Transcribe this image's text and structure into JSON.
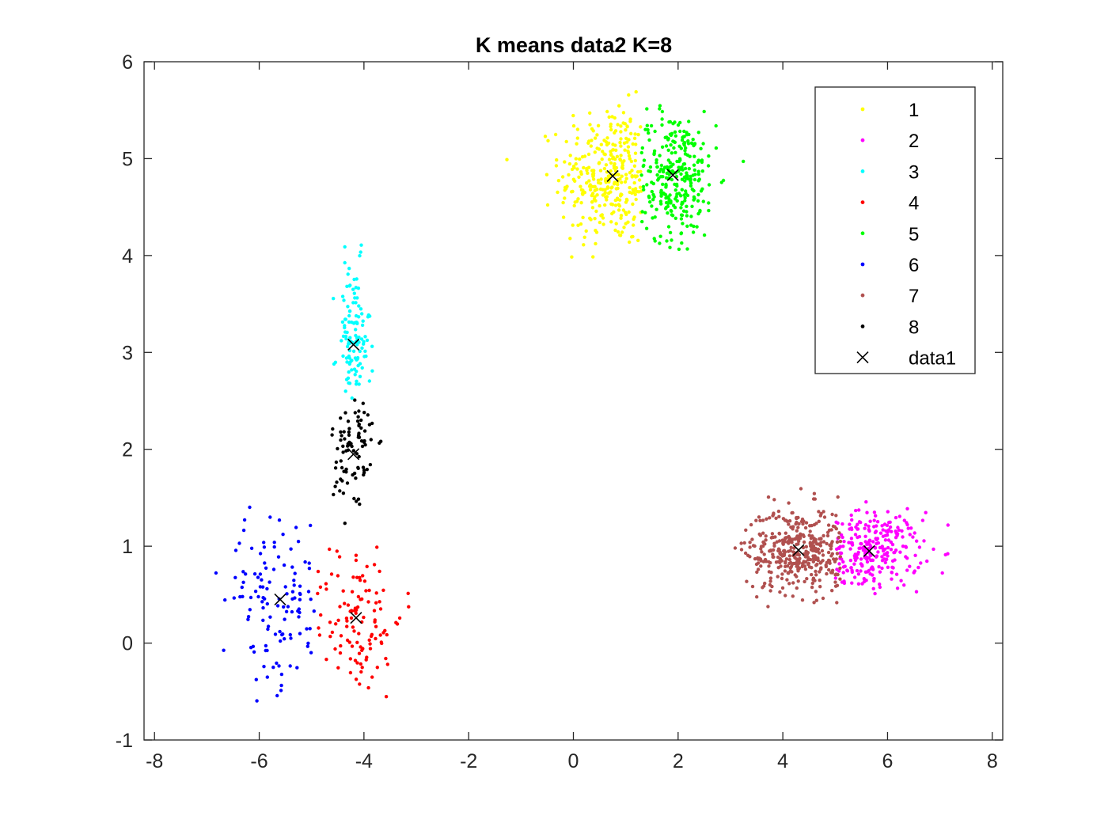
{
  "chart_data": {
    "type": "scatter",
    "title": "K means data2 K=8",
    "xlabel": "",
    "ylabel": "",
    "xlim": [
      -8.2,
      8.2
    ],
    "ylim": [
      -1,
      6
    ],
    "xticks": [
      -8,
      -6,
      -4,
      -2,
      0,
      2,
      4,
      6,
      8
    ],
    "xtick_labels": [
      "-8",
      "-6",
      "-4",
      "-2",
      "0",
      "2",
      "4",
      "6",
      "8"
    ],
    "yticks": [
      -1,
      0,
      1,
      2,
      3,
      4,
      5,
      6
    ],
    "ytick_labels": [
      "-1",
      "0",
      "1",
      "2",
      "3",
      "4",
      "5",
      "6"
    ],
    "grid": false,
    "box": true,
    "legend": {
      "position": "top-right",
      "entries": [
        "1",
        "2",
        "3",
        "4",
        "5",
        "6",
        "7",
        "8",
        "data1"
      ]
    },
    "series": [
      {
        "name": "1",
        "color": "#ffff00",
        "marker": "dot",
        "cluster": {
          "center": [
            0.75,
            4.82
          ],
          "spread": [
            0.5,
            0.36
          ],
          "count": 330,
          "range_x": [
            -1.3,
            1.3
          ],
          "range_y": [
            3.85,
            5.82
          ]
        }
      },
      {
        "name": "2",
        "color": "#ff00ff",
        "marker": "dot",
        "cluster": {
          "center": [
            5.65,
            0.95
          ],
          "spread": [
            0.5,
            0.2
          ],
          "count": 260,
          "range_x": [
            5.0,
            7.5
          ],
          "range_y": [
            0.5,
            1.55
          ]
        }
      },
      {
        "name": "3",
        "color": "#00ffff",
        "marker": "dot",
        "cluster": {
          "center": [
            -4.2,
            3.08
          ],
          "spread": [
            0.16,
            0.42
          ],
          "count": 120,
          "range_x": [
            -4.6,
            -3.8
          ],
          "range_y": [
            2.5,
            4.65
          ]
        }
      },
      {
        "name": "4",
        "color": "#ff0000",
        "marker": "dot",
        "cluster": {
          "center": [
            -4.15,
            0.26
          ],
          "spread": [
            0.45,
            0.4
          ],
          "count": 115,
          "range_x": [
            -4.9,
            -2.8
          ],
          "range_y": [
            -0.62,
            1.08
          ]
        }
      },
      {
        "name": "5",
        "color": "#00ff00",
        "marker": "dot",
        "cluster": {
          "center": [
            1.9,
            4.83
          ],
          "spread": [
            0.42,
            0.33
          ],
          "count": 290,
          "range_x": [
            1.3,
            3.3
          ],
          "range_y": [
            3.9,
            5.75
          ]
        }
      },
      {
        "name": "6",
        "color": "#0000ff",
        "marker": "dot",
        "cluster": {
          "center": [
            -5.6,
            0.45
          ],
          "spread": [
            0.55,
            0.45
          ],
          "count": 120,
          "range_x": [
            -7.4,
            -4.85
          ],
          "range_y": [
            -0.6,
            1.42
          ]
        }
      },
      {
        "name": "7",
        "color": "#b0504f",
        "marker": "dot",
        "cluster": {
          "center": [
            4.3,
            0.96
          ],
          "spread": [
            0.5,
            0.22
          ],
          "count": 400,
          "range_x": [
            2.9,
            5.1
          ],
          "range_y": [
            0.3,
            1.62
          ]
        }
      },
      {
        "name": "8",
        "color": "#000000",
        "marker": "dot",
        "cluster": {
          "center": [
            -4.2,
            1.95
          ],
          "spread": [
            0.2,
            0.4
          ],
          "count": 85,
          "range_x": [
            -5.1,
            -3.5
          ],
          "range_y": [
            1.2,
            2.58
          ]
        }
      },
      {
        "name": "data1",
        "color": "#000000",
        "marker": "x",
        "points": [
          [
            0.75,
            4.82
          ],
          [
            5.65,
            0.95
          ],
          [
            -4.2,
            3.08
          ],
          [
            -4.15,
            0.26
          ],
          [
            1.9,
            4.83
          ],
          [
            -5.6,
            0.45
          ],
          [
            4.3,
            0.96
          ],
          [
            -4.2,
            1.95
          ]
        ]
      }
    ]
  }
}
